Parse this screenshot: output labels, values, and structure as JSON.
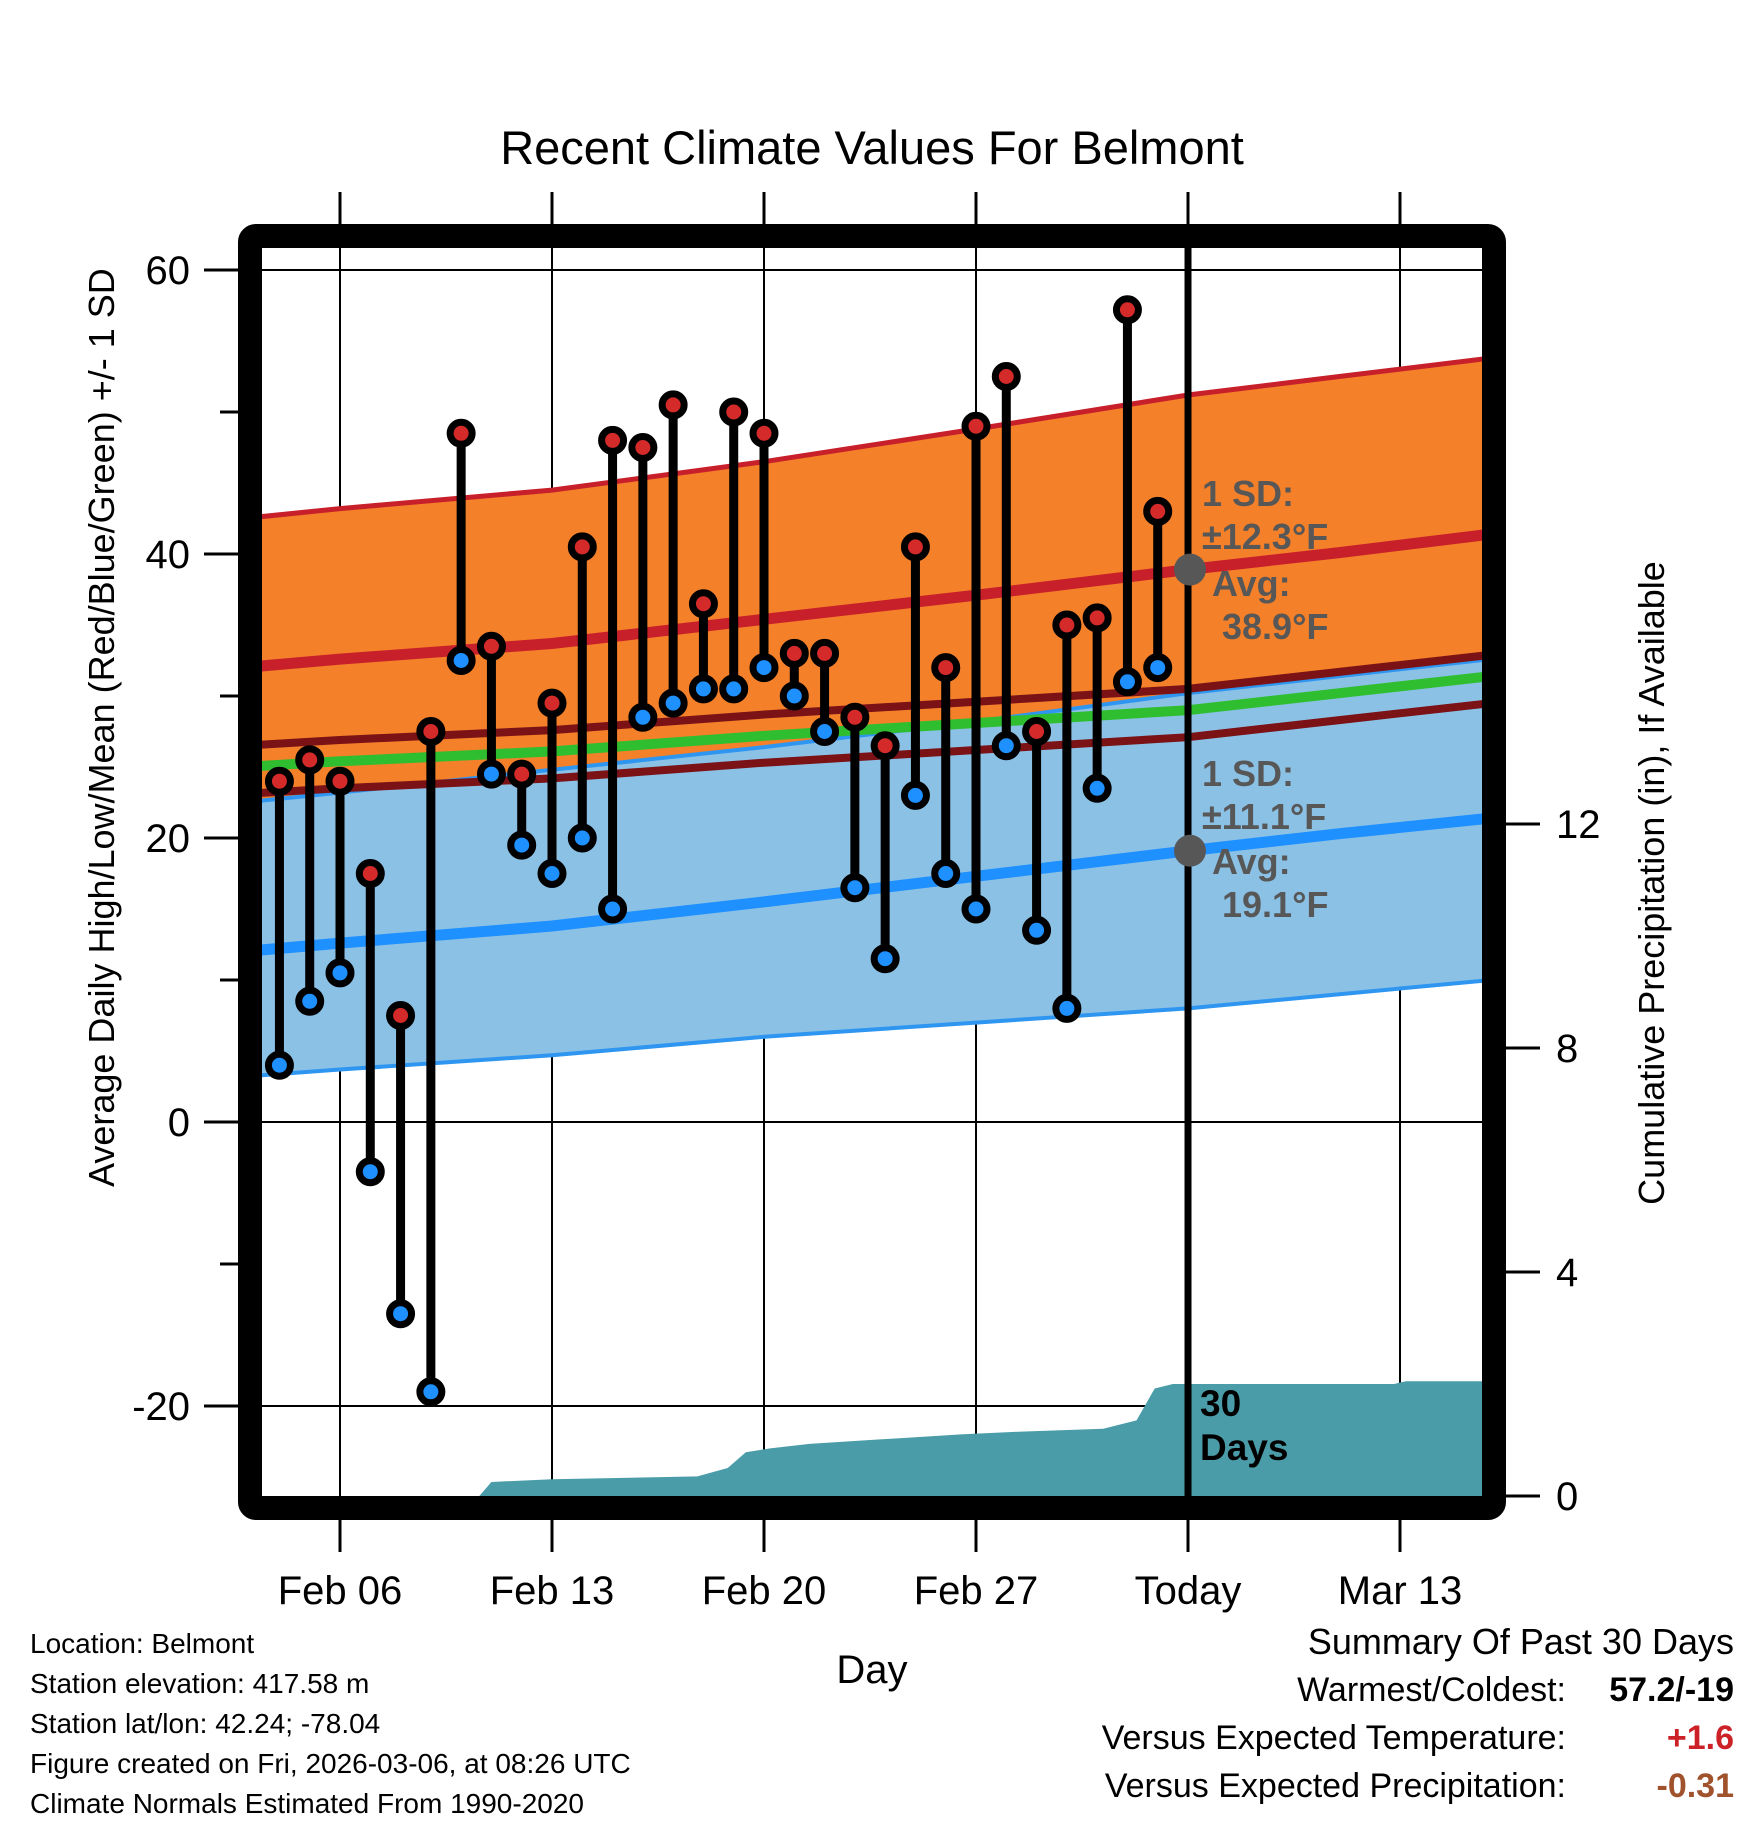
{
  "title": "Recent Climate Values For Belmont",
  "axes": {
    "xlabel": "Day",
    "ylabel_left": "Average Daily High/Low/Mean (Red/Blue/Green) +/- 1 SD",
    "ylabel_right": "Cumulative Precipitation (in), If Available"
  },
  "annotations": {
    "high_sd": "1 SD:\n±12.3°F",
    "high_avg": "Avg:\n 38.9°F",
    "low_sd": "1 SD:\n±11.1°F",
    "low_avg": "Avg:\n 19.1°F",
    "period": "30\nDays"
  },
  "footer": {
    "lines": [
      "Location: Belmont",
      "Station elevation: 417.58 m",
      "Station lat/lon: 42.24; -78.04",
      "Figure created on Fri, 2026-03-06, at 08:26 UTC",
      "Climate Normals Estimated From 1990-2020"
    ]
  },
  "summary": {
    "title": "Summary Of Past 30 Days",
    "rows": [
      {
        "label": "Warmest/Coldest:",
        "value": "57.2/-19",
        "color": "#000000"
      },
      {
        "label": "Versus Expected Temperature:",
        "value": "+1.6",
        "color": "#cc2127"
      },
      {
        "label": "Versus Expected Precipitation:",
        "value": "-0.31",
        "color": "#a0522d"
      }
    ]
  },
  "chart_data": {
    "type": "lollipop-range + normal-bands + cumulative-area",
    "title": "Recent Climate Values For Belmont",
    "xlabel": "Day",
    "ylabel_left": "Average Daily High/Low/Mean (Red/Blue/Green) +/- 1 SD",
    "ylabel_right": "Cumulative Precipitation (in), If Available",
    "y_left_axis": {
      "ticks": [
        60,
        40,
        20,
        0,
        -20
      ],
      "minor_ticks": [
        50,
        30,
        10,
        -10
      ],
      "range_shown": [
        -26.5,
        61.5
      ]
    },
    "y_right_axis": {
      "ticks": [
        12,
        8,
        4,
        0
      ],
      "units": "in"
    },
    "x_axis": {
      "ticks": [
        {
          "label": "Feb 06",
          "day": 0
        },
        {
          "label": "Feb 13",
          "day": 7
        },
        {
          "label": "Feb 20",
          "day": 14
        },
        {
          "label": "Feb 27",
          "day": 21
        },
        {
          "label": "Today",
          "day": 28
        },
        {
          "label": "Mar 13",
          "day": 35
        }
      ],
      "today_day": 28,
      "day_range_shown": [
        -3.2,
        37.7
      ]
    },
    "days": [
      {
        "date": "Feb 04",
        "day": -2,
        "high": 24,
        "low": 4
      },
      {
        "date": "Feb 05",
        "day": -1,
        "high": 25.5,
        "low": 8.5
      },
      {
        "date": "Feb 06",
        "day": 0,
        "high": 24,
        "low": 10.5
      },
      {
        "date": "Feb 07",
        "day": 1,
        "high": 17.5,
        "low": -3.5
      },
      {
        "date": "Feb 08",
        "day": 2,
        "high": 7.5,
        "low": -13.5
      },
      {
        "date": "Feb 09",
        "day": 3,
        "high": 27.5,
        "low": -19
      },
      {
        "date": "Feb 10",
        "day": 4,
        "high": 48.5,
        "low": 32.5
      },
      {
        "date": "Feb 11",
        "day": 5,
        "high": 33.5,
        "low": 24.5
      },
      {
        "date": "Feb 12",
        "day": 6,
        "high": 24.5,
        "low": 19.5
      },
      {
        "date": "Feb 13",
        "day": 7,
        "high": 29.5,
        "low": 17.5
      },
      {
        "date": "Feb 14",
        "day": 8,
        "high": 40.5,
        "low": 20
      },
      {
        "date": "Feb 15",
        "day": 9,
        "high": 48,
        "low": 15
      },
      {
        "date": "Feb 16",
        "day": 10,
        "high": 47.5,
        "low": 28.5
      },
      {
        "date": "Feb 17",
        "day": 11,
        "high": 50.5,
        "low": 29.5
      },
      {
        "date": "Feb 18",
        "day": 12,
        "high": 36.5,
        "low": 30.5
      },
      {
        "date": "Feb 19",
        "day": 13,
        "high": 50,
        "low": 30.5
      },
      {
        "date": "Feb 20",
        "day": 14,
        "high": 48.5,
        "low": 32
      },
      {
        "date": "Feb 21",
        "day": 15,
        "high": 33,
        "low": 30
      },
      {
        "date": "Feb 22",
        "day": 16,
        "high": 33,
        "low": 27.5
      },
      {
        "date": "Feb 23",
        "day": 17,
        "high": 28.5,
        "low": 16.5
      },
      {
        "date": "Feb 24",
        "day": 18,
        "high": 26.5,
        "low": 11.5
      },
      {
        "date": "Feb 25",
        "day": 19,
        "high": 40.5,
        "low": 23
      },
      {
        "date": "Feb 26",
        "day": 20,
        "high": 32,
        "low": 17.5
      },
      {
        "date": "Feb 27",
        "day": 21,
        "high": 49,
        "low": 15
      },
      {
        "date": "Feb 28",
        "day": 22,
        "high": 52.5,
        "low": 26.5
      },
      {
        "date": "Mar 01",
        "day": 23,
        "high": 27.5,
        "low": 13.5
      },
      {
        "date": "Mar 02",
        "day": 24,
        "high": 35,
        "low": 8
      },
      {
        "date": "Mar 03",
        "day": 25,
        "high": 35.5,
        "low": 23.5
      },
      {
        "date": "Mar 04",
        "day": 26,
        "high": 57.2,
        "low": 31
      },
      {
        "date": "Mar 05",
        "day": 27,
        "high": 43,
        "low": 32
      }
    ],
    "normals": {
      "x_days": [
        -3.2,
        0,
        7,
        14,
        21,
        28,
        33,
        38
      ],
      "high_upper": [
        42.5,
        43.2,
        44.5,
        46.5,
        48.8,
        51.2,
        52.5,
        53.8
      ],
      "high_avg": [
        32.0,
        32.6,
        33.7,
        35.4,
        37.1,
        38.9,
        40.1,
        41.4
      ],
      "high_lower": [
        21.5,
        22.0,
        22.9,
        24.3,
        25.4,
        26.6,
        27.8,
        29.0
      ],
      "mean": [
        25.0,
        25.4,
        26.1,
        27.2,
        28.1,
        29.0,
        30.2,
        31.4
      ],
      "low_upper": [
        22.5,
        23.2,
        24.8,
        26.4,
        28.2,
        30.2,
        31.4,
        32.6
      ],
      "low_avg": [
        12.0,
        12.6,
        13.8,
        15.5,
        17.3,
        19.1,
        20.3,
        21.4
      ],
      "low_lower": [
        3.2,
        3.7,
        4.7,
        6.0,
        7.0,
        8.0,
        9.0,
        10.0
      ],
      "high_sd_at_today": 12.3,
      "low_sd_at_today": 11.1,
      "high_avg_at_today": 38.9,
      "low_avg_at_today": 19.1
    },
    "precip_cumulative_in": [
      [
        4.6,
        0.0
      ],
      [
        5.0,
        0.25
      ],
      [
        7.0,
        0.3
      ],
      [
        11.8,
        0.35
      ],
      [
        12.8,
        0.5
      ],
      [
        13.4,
        0.78
      ],
      [
        14.2,
        0.85
      ],
      [
        15.5,
        0.93
      ],
      [
        17.5,
        1.0
      ],
      [
        19.0,
        1.05
      ],
      [
        20.5,
        1.1
      ],
      [
        22.5,
        1.15
      ],
      [
        25.2,
        1.2
      ],
      [
        26.3,
        1.35
      ],
      [
        26.9,
        1.92
      ],
      [
        27.5,
        2.0
      ],
      [
        34.8,
        2.0
      ],
      [
        35.2,
        2.05
      ],
      [
        37.7,
        2.05
      ]
    ],
    "colors": {
      "high_band": "#f4802a",
      "high_line": "#c8202a",
      "high_edge": "#c8202a",
      "maroon_edges": "#7a1216",
      "mean_line": "#2fbe2f",
      "low_band": "#8cc1e6",
      "low_line": "#1e90ff",
      "low_edge": "#2e96f0",
      "dot_high": "#d42a2a",
      "dot_low": "#1e90ff",
      "stem": "#000000",
      "precip_area": "#4a9da8",
      "today_line": "#000000",
      "avg_marker": "#575757",
      "annotation_text": "#575757"
    }
  }
}
